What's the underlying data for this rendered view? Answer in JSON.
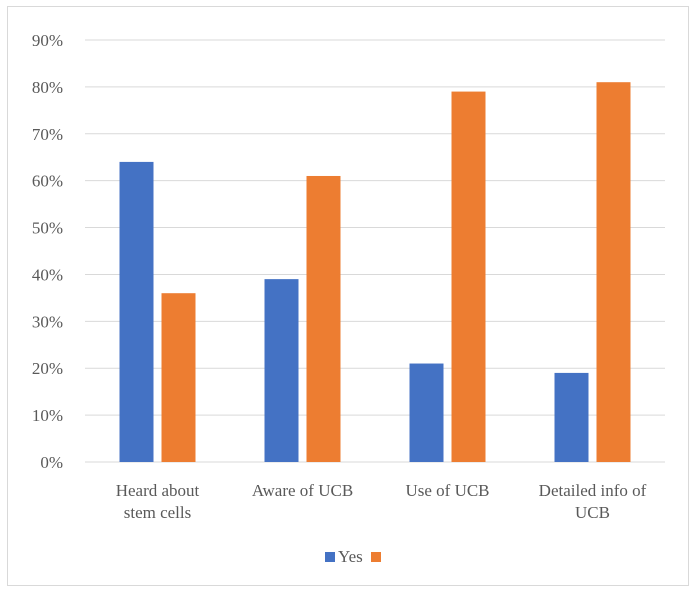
{
  "chart_data": {
    "type": "bar",
    "categories": [
      [
        "Heard about",
        "stem cells"
      ],
      [
        "Aware of UCB"
      ],
      [
        "Use of UCB"
      ],
      [
        "Detailed info of",
        "UCB"
      ]
    ],
    "series": [
      {
        "name": "Yes",
        "values": [
          64,
          39,
          21,
          19
        ],
        "color": "#4472C4"
      },
      {
        "name": "",
        "values": [
          36,
          61,
          79,
          81
        ],
        "color": "#ED7D31"
      }
    ],
    "yticks": [
      "0%",
      "10%",
      "20%",
      "30%",
      "40%",
      "50%",
      "60%",
      "70%",
      "80%",
      "90%"
    ],
    "ylim": [
      0,
      90
    ],
    "grid": true,
    "legend_position": "bottom",
    "gridline_color": "#d9d9d9"
  }
}
